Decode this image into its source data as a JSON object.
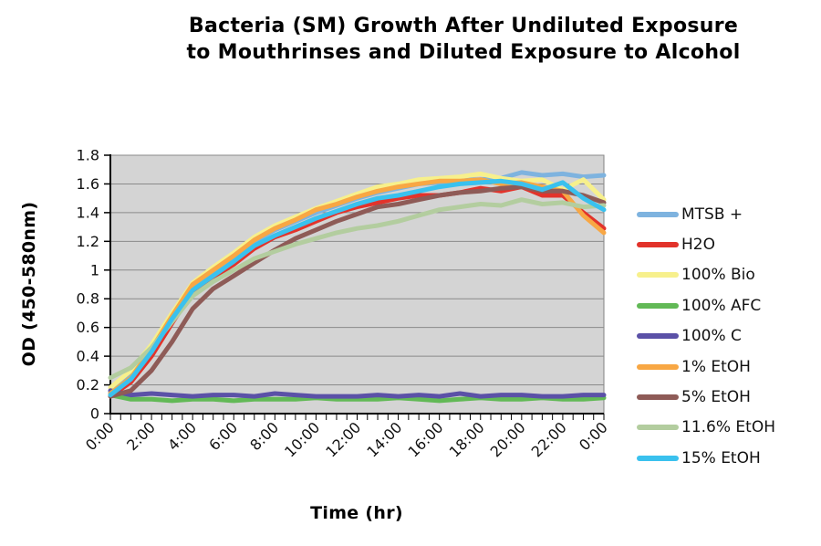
{
  "chart_data": {
    "type": "line",
    "title": "Bacteria (SM) Growth After Undiluted Exposure to Mouthrinses and Diluted Exposure to Alcohol",
    "title_lines": [
      "Bacteria (SM) Growth After Undiluted Exposure",
      "to Mouthrinses and Diluted Exposure to Alcohol"
    ],
    "xlabel": "Time (hr)",
    "ylabel": "OD (450-580nm)",
    "ylim": [
      0,
      1.8
    ],
    "y_tick_step": 0.2,
    "y_tick_labels": [
      "0",
      "0.2",
      "0.4",
      "0.6",
      "0.8",
      "1",
      "1.2",
      "1.4",
      "1.6",
      "1.8"
    ],
    "x_range_hours": [
      0,
      24
    ],
    "x_tick_labels": [
      "0:00",
      "2:00",
      "4:00",
      "6:00",
      "8:00",
      "10:00",
      "12:00",
      "14:00",
      "16:00",
      "18:00",
      "20:00",
      "22:00",
      "0:00"
    ],
    "x_minor_tick_hours": 0.5,
    "grid": "horizontal",
    "legend_position": "right",
    "plot_bg": "#D4D4D4",
    "gridline_color": "#8A8A8A",
    "plot_border_color": "#828282",
    "axis_color": "#000000",
    "x_hours": [
      0,
      1,
      2,
      3,
      4,
      5,
      6,
      7,
      8,
      9,
      10,
      11,
      12,
      13,
      14,
      15,
      16,
      17,
      18,
      19,
      20,
      21,
      22,
      23,
      24
    ],
    "series": [
      {
        "name": "MTSB +",
        "color": "#7EB3DF",
        "values": [
          0.15,
          0.27,
          0.46,
          0.68,
          0.88,
          0.99,
          1.09,
          1.2,
          1.28,
          1.34,
          1.4,
          1.45,
          1.5,
          1.54,
          1.57,
          1.6,
          1.61,
          1.63,
          1.63,
          1.64,
          1.68,
          1.66,
          1.67,
          1.65,
          1.66
        ]
      },
      {
        "name": "H2O",
        "color": "#E2332B",
        "values": [
          0.12,
          0.22,
          0.4,
          0.63,
          0.85,
          0.95,
          1.04,
          1.15,
          1.23,
          1.28,
          1.34,
          1.4,
          1.44,
          1.47,
          1.5,
          1.52,
          1.52,
          1.54,
          1.57,
          1.55,
          1.58,
          1.52,
          1.52,
          1.4,
          1.29
        ]
      },
      {
        "name": "100% Bio",
        "color": "#F7F08C",
        "values": [
          0.18,
          0.3,
          0.48,
          0.7,
          0.91,
          1.02,
          1.12,
          1.23,
          1.31,
          1.37,
          1.43,
          1.48,
          1.53,
          1.58,
          1.6,
          1.63,
          1.64,
          1.65,
          1.67,
          1.64,
          1.62,
          1.63,
          1.56,
          1.63,
          1.49
        ]
      },
      {
        "name": "100% AFC",
        "color": "#62B956",
        "values": [
          0.13,
          0.1,
          0.1,
          0.09,
          0.1,
          0.1,
          0.09,
          0.1,
          0.1,
          0.1,
          0.11,
          0.1,
          0.1,
          0.1,
          0.11,
          0.1,
          0.09,
          0.1,
          0.11,
          0.1,
          0.1,
          0.11,
          0.1,
          0.1,
          0.11
        ]
      },
      {
        "name": "100% C",
        "color": "#5B51A7",
        "values": [
          0.16,
          0.13,
          0.14,
          0.13,
          0.12,
          0.13,
          0.13,
          0.12,
          0.14,
          0.13,
          0.12,
          0.12,
          0.12,
          0.13,
          0.12,
          0.13,
          0.12,
          0.14,
          0.12,
          0.13,
          0.13,
          0.12,
          0.12,
          0.13,
          0.13
        ]
      },
      {
        "name": "1% EtOH",
        "color": "#F8A744",
        "values": [
          0.14,
          0.25,
          0.45,
          0.68,
          0.9,
          1.0,
          1.1,
          1.21,
          1.29,
          1.35,
          1.42,
          1.46,
          1.51,
          1.55,
          1.58,
          1.6,
          1.62,
          1.62,
          1.63,
          1.6,
          1.61,
          1.58,
          1.55,
          1.38,
          1.26
        ]
      },
      {
        "name": "5% EtOH",
        "color": "#8E5B57",
        "values": [
          0.12,
          0.16,
          0.3,
          0.5,
          0.73,
          0.87,
          0.96,
          1.05,
          1.14,
          1.22,
          1.28,
          1.34,
          1.39,
          1.44,
          1.46,
          1.49,
          1.52,
          1.54,
          1.55,
          1.57,
          1.58,
          1.55,
          1.55,
          1.52,
          1.47
        ]
      },
      {
        "name": "11.6% EtOH",
        "color": "#B3CD9F",
        "values": [
          0.25,
          0.32,
          0.46,
          0.64,
          0.82,
          0.92,
          1.0,
          1.08,
          1.13,
          1.18,
          1.22,
          1.26,
          1.29,
          1.31,
          1.34,
          1.38,
          1.42,
          1.44,
          1.46,
          1.45,
          1.49,
          1.46,
          1.47,
          1.44,
          1.45
        ]
      },
      {
        "name": "15% EtOH",
        "color": "#3AC1EE",
        "values": [
          0.13,
          0.24,
          0.43,
          0.66,
          0.86,
          0.96,
          1.06,
          1.17,
          1.24,
          1.3,
          1.36,
          1.41,
          1.46,
          1.5,
          1.52,
          1.55,
          1.58,
          1.6,
          1.61,
          1.62,
          1.6,
          1.56,
          1.61,
          1.5,
          1.42
        ]
      }
    ]
  }
}
